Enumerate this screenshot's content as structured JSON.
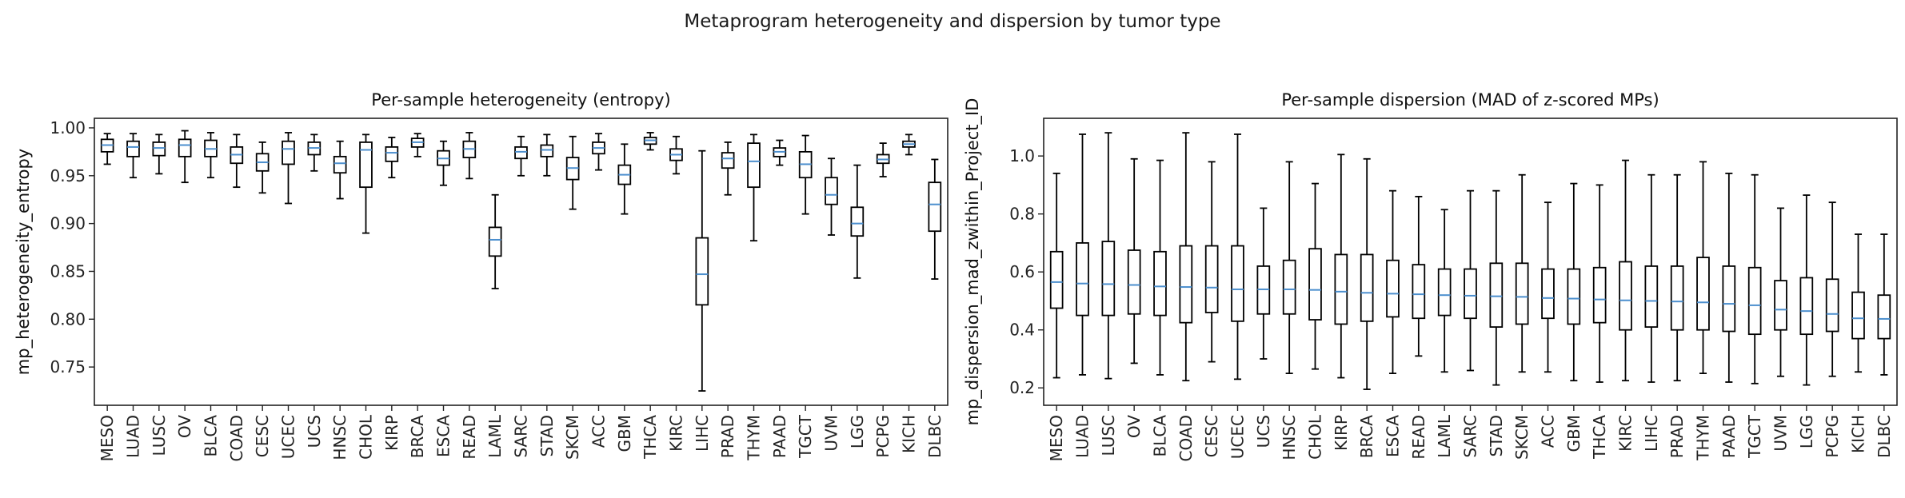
{
  "suptitle": "Metaprogram heterogeneity and dispersion by tumor type",
  "chart_data": [
    {
      "type": "box",
      "title": "Per-sample heterogeneity (entropy)",
      "xlabel": "",
      "ylabel": "mp_heterogeneity_entropy",
      "ylim": [
        0.71,
        1.01
      ],
      "yticks": [
        0.75,
        0.8,
        0.85,
        0.9,
        0.95,
        1.0
      ],
      "ytick_labels": [
        "0.75",
        "0.80",
        "0.85",
        "0.90",
        "0.95",
        "1.00"
      ],
      "categories": [
        "MESO",
        "LUAD",
        "LUSC",
        "OV",
        "BLCA",
        "COAD",
        "CESC",
        "UCEC",
        "UCS",
        "HNSC",
        "CHOL",
        "KIRP",
        "BRCA",
        "ESCA",
        "READ",
        "LAML",
        "SARC",
        "STAD",
        "SKCM",
        "ACC",
        "GBM",
        "THCA",
        "KIRC",
        "LIHC",
        "PRAD",
        "THYM",
        "PAAD",
        "TGCT",
        "UVM",
        "LGG",
        "PCPG",
        "KICH",
        "DLBC"
      ],
      "boxes": [
        {
          "whislo": 0.962,
          "q1": 0.975,
          "med": 0.982,
          "q3": 0.988,
          "whishi": 0.994
        },
        {
          "whislo": 0.948,
          "q1": 0.97,
          "med": 0.98,
          "q3": 0.986,
          "whishi": 0.994
        },
        {
          "whislo": 0.952,
          "q1": 0.971,
          "med": 0.979,
          "q3": 0.985,
          "whishi": 0.993
        },
        {
          "whislo": 0.943,
          "q1": 0.97,
          "med": 0.982,
          "q3": 0.988,
          "whishi": 0.997
        },
        {
          "whislo": 0.948,
          "q1": 0.97,
          "med": 0.978,
          "q3": 0.987,
          "whishi": 0.995
        },
        {
          "whislo": 0.938,
          "q1": 0.963,
          "med": 0.972,
          "q3": 0.98,
          "whishi": 0.993
        },
        {
          "whislo": 0.932,
          "q1": 0.955,
          "med": 0.964,
          "q3": 0.973,
          "whishi": 0.985
        },
        {
          "whislo": 0.921,
          "q1": 0.962,
          "med": 0.978,
          "q3": 0.986,
          "whishi": 0.995
        },
        {
          "whislo": 0.955,
          "q1": 0.972,
          "med": 0.979,
          "q3": 0.985,
          "whishi": 0.993
        },
        {
          "whislo": 0.926,
          "q1": 0.953,
          "med": 0.963,
          "q3": 0.97,
          "whishi": 0.986
        },
        {
          "whislo": 0.89,
          "q1": 0.938,
          "med": 0.977,
          "q3": 0.985,
          "whishi": 0.993
        },
        {
          "whislo": 0.948,
          "q1": 0.965,
          "med": 0.974,
          "q3": 0.98,
          "whishi": 0.99
        },
        {
          "whislo": 0.97,
          "q1": 0.98,
          "med": 0.985,
          "q3": 0.989,
          "whishi": 0.994
        },
        {
          "whislo": 0.94,
          "q1": 0.961,
          "med": 0.968,
          "q3": 0.976,
          "whishi": 0.986
        },
        {
          "whislo": 0.947,
          "q1": 0.969,
          "med": 0.978,
          "q3": 0.986,
          "whishi": 0.995
        },
        {
          "whislo": 0.832,
          "q1": 0.866,
          "med": 0.883,
          "q3": 0.896,
          "whishi": 0.93
        },
        {
          "whislo": 0.95,
          "q1": 0.968,
          "med": 0.975,
          "q3": 0.98,
          "whishi": 0.991
        },
        {
          "whislo": 0.95,
          "q1": 0.97,
          "med": 0.977,
          "q3": 0.982,
          "whishi": 0.993
        },
        {
          "whislo": 0.915,
          "q1": 0.946,
          "med": 0.958,
          "q3": 0.969,
          "whishi": 0.991
        },
        {
          "whislo": 0.956,
          "q1": 0.973,
          "med": 0.979,
          "q3": 0.985,
          "whishi": 0.994
        },
        {
          "whislo": 0.91,
          "q1": 0.941,
          "med": 0.951,
          "q3": 0.961,
          "whishi": 0.983
        },
        {
          "whislo": 0.977,
          "q1": 0.983,
          "med": 0.987,
          "q3": 0.99,
          "whishi": 0.995
        },
        {
          "whislo": 0.952,
          "q1": 0.966,
          "med": 0.972,
          "q3": 0.978,
          "whishi": 0.991
        },
        {
          "whislo": 0.725,
          "q1": 0.815,
          "med": 0.847,
          "q3": 0.885,
          "whishi": 0.976
        },
        {
          "whislo": 0.93,
          "q1": 0.958,
          "med": 0.968,
          "q3": 0.974,
          "whishi": 0.985
        },
        {
          "whislo": 0.882,
          "q1": 0.938,
          "med": 0.965,
          "q3": 0.984,
          "whishi": 0.993
        },
        {
          "whislo": 0.961,
          "q1": 0.97,
          "med": 0.975,
          "q3": 0.979,
          "whishi": 0.987
        },
        {
          "whislo": 0.91,
          "q1": 0.948,
          "med": 0.962,
          "q3": 0.975,
          "whishi": 0.992
        },
        {
          "whislo": 0.888,
          "q1": 0.92,
          "med": 0.93,
          "q3": 0.948,
          "whishi": 0.968
        },
        {
          "whislo": 0.843,
          "q1": 0.887,
          "med": 0.9,
          "q3": 0.917,
          "whishi": 0.961
        },
        {
          "whislo": 0.949,
          "q1": 0.963,
          "med": 0.967,
          "q3": 0.972,
          "whishi": 0.984
        },
        {
          "whislo": 0.972,
          "q1": 0.98,
          "med": 0.983,
          "q3": 0.986,
          "whishi": 0.993
        },
        {
          "whislo": 0.842,
          "q1": 0.892,
          "med": 0.92,
          "q3": 0.943,
          "whishi": 0.967
        }
      ],
      "box_color": "#000000",
      "median_color": "#4c8fce",
      "grid": false
    },
    {
      "type": "box",
      "title": "Per-sample dispersion (MAD of z-scored MPs)",
      "xlabel": "",
      "ylabel": "mp_dispersion_mad_zwithin_Project_ID",
      "ylim": [
        0.14,
        1.13
      ],
      "yticks": [
        0.2,
        0.4,
        0.6,
        0.8,
        1.0
      ],
      "ytick_labels": [
        "0.2",
        "0.4",
        "0.6",
        "0.8",
        "1.0"
      ],
      "categories": [
        "MESO",
        "LUAD",
        "LUSC",
        "OV",
        "BLCA",
        "COAD",
        "CESC",
        "UCEC",
        "UCS",
        "HNSC",
        "CHOL",
        "KIRP",
        "BRCA",
        "ESCA",
        "READ",
        "LAML",
        "SARC",
        "STAD",
        "SKCM",
        "ACC",
        "GBM",
        "THCA",
        "KIRC",
        "LIHC",
        "PRAD",
        "THYM",
        "PAAD",
        "TGCT",
        "UVM",
        "LGG",
        "PCPG",
        "KICH",
        "DLBC"
      ],
      "boxes": [
        {
          "whislo": 0.235,
          "q1": 0.475,
          "med": 0.565,
          "q3": 0.67,
          "whishi": 0.94
        },
        {
          "whislo": 0.245,
          "q1": 0.45,
          "med": 0.56,
          "q3": 0.7,
          "whishi": 1.075
        },
        {
          "whislo": 0.232,
          "q1": 0.45,
          "med": 0.558,
          "q3": 0.705,
          "whishi": 1.08
        },
        {
          "whislo": 0.285,
          "q1": 0.455,
          "med": 0.555,
          "q3": 0.675,
          "whishi": 0.99
        },
        {
          "whislo": 0.245,
          "q1": 0.45,
          "med": 0.55,
          "q3": 0.67,
          "whishi": 0.985
        },
        {
          "whislo": 0.225,
          "q1": 0.425,
          "med": 0.548,
          "q3": 0.69,
          "whishi": 1.08
        },
        {
          "whislo": 0.29,
          "q1": 0.46,
          "med": 0.546,
          "q3": 0.69,
          "whishi": 0.98
        },
        {
          "whislo": 0.23,
          "q1": 0.43,
          "med": 0.54,
          "q3": 0.69,
          "whishi": 1.075
        },
        {
          "whislo": 0.3,
          "q1": 0.455,
          "med": 0.54,
          "q3": 0.62,
          "whishi": 0.82
        },
        {
          "whislo": 0.25,
          "q1": 0.455,
          "med": 0.54,
          "q3": 0.64,
          "whishi": 0.98
        },
        {
          "whislo": 0.265,
          "q1": 0.435,
          "med": 0.538,
          "q3": 0.68,
          "whishi": 0.905
        },
        {
          "whislo": 0.235,
          "q1": 0.42,
          "med": 0.532,
          "q3": 0.66,
          "whishi": 1.005
        },
        {
          "whislo": 0.195,
          "q1": 0.43,
          "med": 0.528,
          "q3": 0.66,
          "whishi": 0.99
        },
        {
          "whislo": 0.25,
          "q1": 0.445,
          "med": 0.525,
          "q3": 0.64,
          "whishi": 0.88
        },
        {
          "whislo": 0.31,
          "q1": 0.44,
          "med": 0.523,
          "q3": 0.625,
          "whishi": 0.86
        },
        {
          "whislo": 0.255,
          "q1": 0.45,
          "med": 0.52,
          "q3": 0.61,
          "whishi": 0.815
        },
        {
          "whislo": 0.26,
          "q1": 0.44,
          "med": 0.518,
          "q3": 0.61,
          "whishi": 0.88
        },
        {
          "whislo": 0.21,
          "q1": 0.41,
          "med": 0.516,
          "q3": 0.63,
          "whishi": 0.88
        },
        {
          "whislo": 0.255,
          "q1": 0.42,
          "med": 0.514,
          "q3": 0.63,
          "whishi": 0.935
        },
        {
          "whislo": 0.255,
          "q1": 0.44,
          "med": 0.51,
          "q3": 0.61,
          "whishi": 0.84
        },
        {
          "whislo": 0.225,
          "q1": 0.42,
          "med": 0.508,
          "q3": 0.61,
          "whishi": 0.905
        },
        {
          "whislo": 0.22,
          "q1": 0.425,
          "med": 0.505,
          "q3": 0.615,
          "whishi": 0.9
        },
        {
          "whislo": 0.225,
          "q1": 0.4,
          "med": 0.502,
          "q3": 0.635,
          "whishi": 0.985
        },
        {
          "whislo": 0.22,
          "q1": 0.41,
          "med": 0.5,
          "q3": 0.62,
          "whishi": 0.935
        },
        {
          "whislo": 0.225,
          "q1": 0.4,
          "med": 0.498,
          "q3": 0.62,
          "whishi": 0.935
        },
        {
          "whislo": 0.25,
          "q1": 0.4,
          "med": 0.495,
          "q3": 0.65,
          "whishi": 0.98
        },
        {
          "whislo": 0.22,
          "q1": 0.395,
          "med": 0.49,
          "q3": 0.62,
          "whishi": 0.94
        },
        {
          "whislo": 0.215,
          "q1": 0.385,
          "med": 0.485,
          "q3": 0.615,
          "whishi": 0.935
        },
        {
          "whislo": 0.24,
          "q1": 0.4,
          "med": 0.47,
          "q3": 0.57,
          "whishi": 0.82
        },
        {
          "whislo": 0.21,
          "q1": 0.385,
          "med": 0.465,
          "q3": 0.58,
          "whishi": 0.865
        },
        {
          "whislo": 0.24,
          "q1": 0.395,
          "med": 0.455,
          "q3": 0.575,
          "whishi": 0.84
        },
        {
          "whislo": 0.255,
          "q1": 0.37,
          "med": 0.44,
          "q3": 0.53,
          "whishi": 0.73
        },
        {
          "whislo": 0.245,
          "q1": 0.37,
          "med": 0.438,
          "q3": 0.52,
          "whishi": 0.73
        }
      ],
      "box_color": "#000000",
      "median_color": "#4c8fce",
      "grid": false
    }
  ]
}
